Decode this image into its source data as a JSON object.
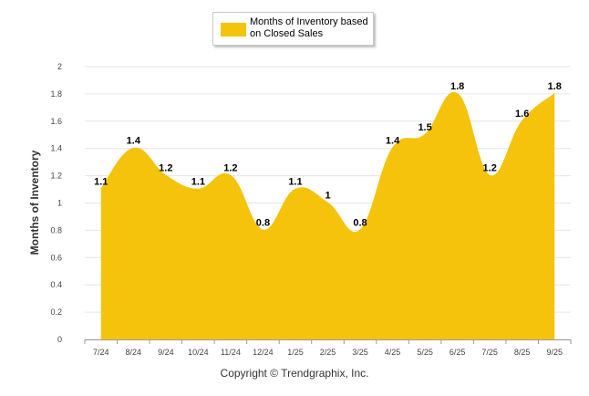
{
  "chart_data": {
    "type": "area",
    "title": "",
    "xlabel": "",
    "ylabel": "Months of Inventory",
    "ylim": [
      0,
      2
    ],
    "yticks": [
      "0",
      "0.2",
      "0.4",
      "0.6",
      "0.8",
      "1",
      "1.2",
      "1.4",
      "1.6",
      "1.8",
      "2"
    ],
    "categories": [
      "7/24",
      "8/24",
      "9/24",
      "10/24",
      "11/24",
      "12/24",
      "1/25",
      "2/25",
      "3/25",
      "4/25",
      "5/25",
      "6/25",
      "7/25",
      "8/25",
      "9/25"
    ],
    "series": [
      {
        "name": "Months of Inventory based on Closed Sales",
        "values": [
          1.1,
          1.4,
          1.2,
          1.1,
          1.2,
          0.8,
          1.1,
          1,
          0.8,
          1.4,
          1.5,
          1.8,
          1.2,
          1.6,
          1.8
        ],
        "labels": [
          "1.1",
          "1.4",
          "1.2",
          "1.1",
          "1.2",
          "0.8",
          "1.1",
          "1",
          "0.8",
          "1.4",
          "1.5",
          "1.8",
          "1.2",
          "1.6",
          "1.8"
        ]
      }
    ],
    "legend": {
      "label": "Months of Inventory based on Closed Sales",
      "placement": "top-center"
    },
    "grid": true
  },
  "colors": {
    "fill": "#f5c30c",
    "grid": "#e6e6e6"
  },
  "footer": {
    "copyright": "Copyright © Trendgraphix, Inc."
  }
}
